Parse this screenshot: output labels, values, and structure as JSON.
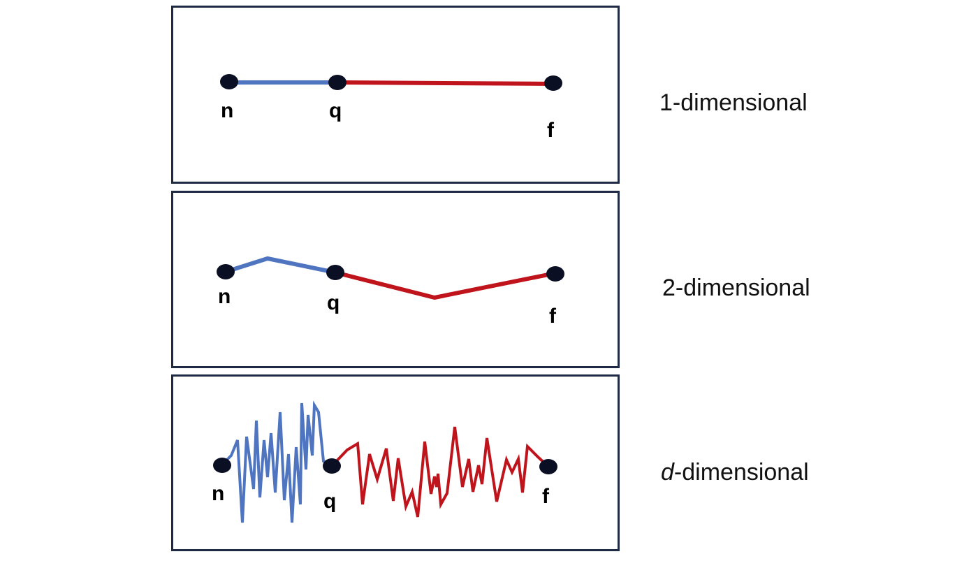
{
  "colors": {
    "frame": "#1f2a44",
    "blue_segment": "#4f74c0",
    "red_segment": "#c0141c",
    "node": "#0b0f24"
  },
  "panels": [
    {
      "node_labels": {
        "start": "n",
        "middle": "q",
        "end": "f"
      },
      "dimension_prefix": "1",
      "dimension_suffix": "-dimensional"
    },
    {
      "node_labels": {
        "start": "n",
        "middle": "q",
        "end": "f"
      },
      "dimension_prefix": "2",
      "dimension_suffix": "-dimensional"
    },
    {
      "node_labels": {
        "start": "n",
        "middle": "q",
        "end": "f"
      },
      "dimension_prefix": "d",
      "dimension_suffix": "-dimensional"
    }
  ]
}
